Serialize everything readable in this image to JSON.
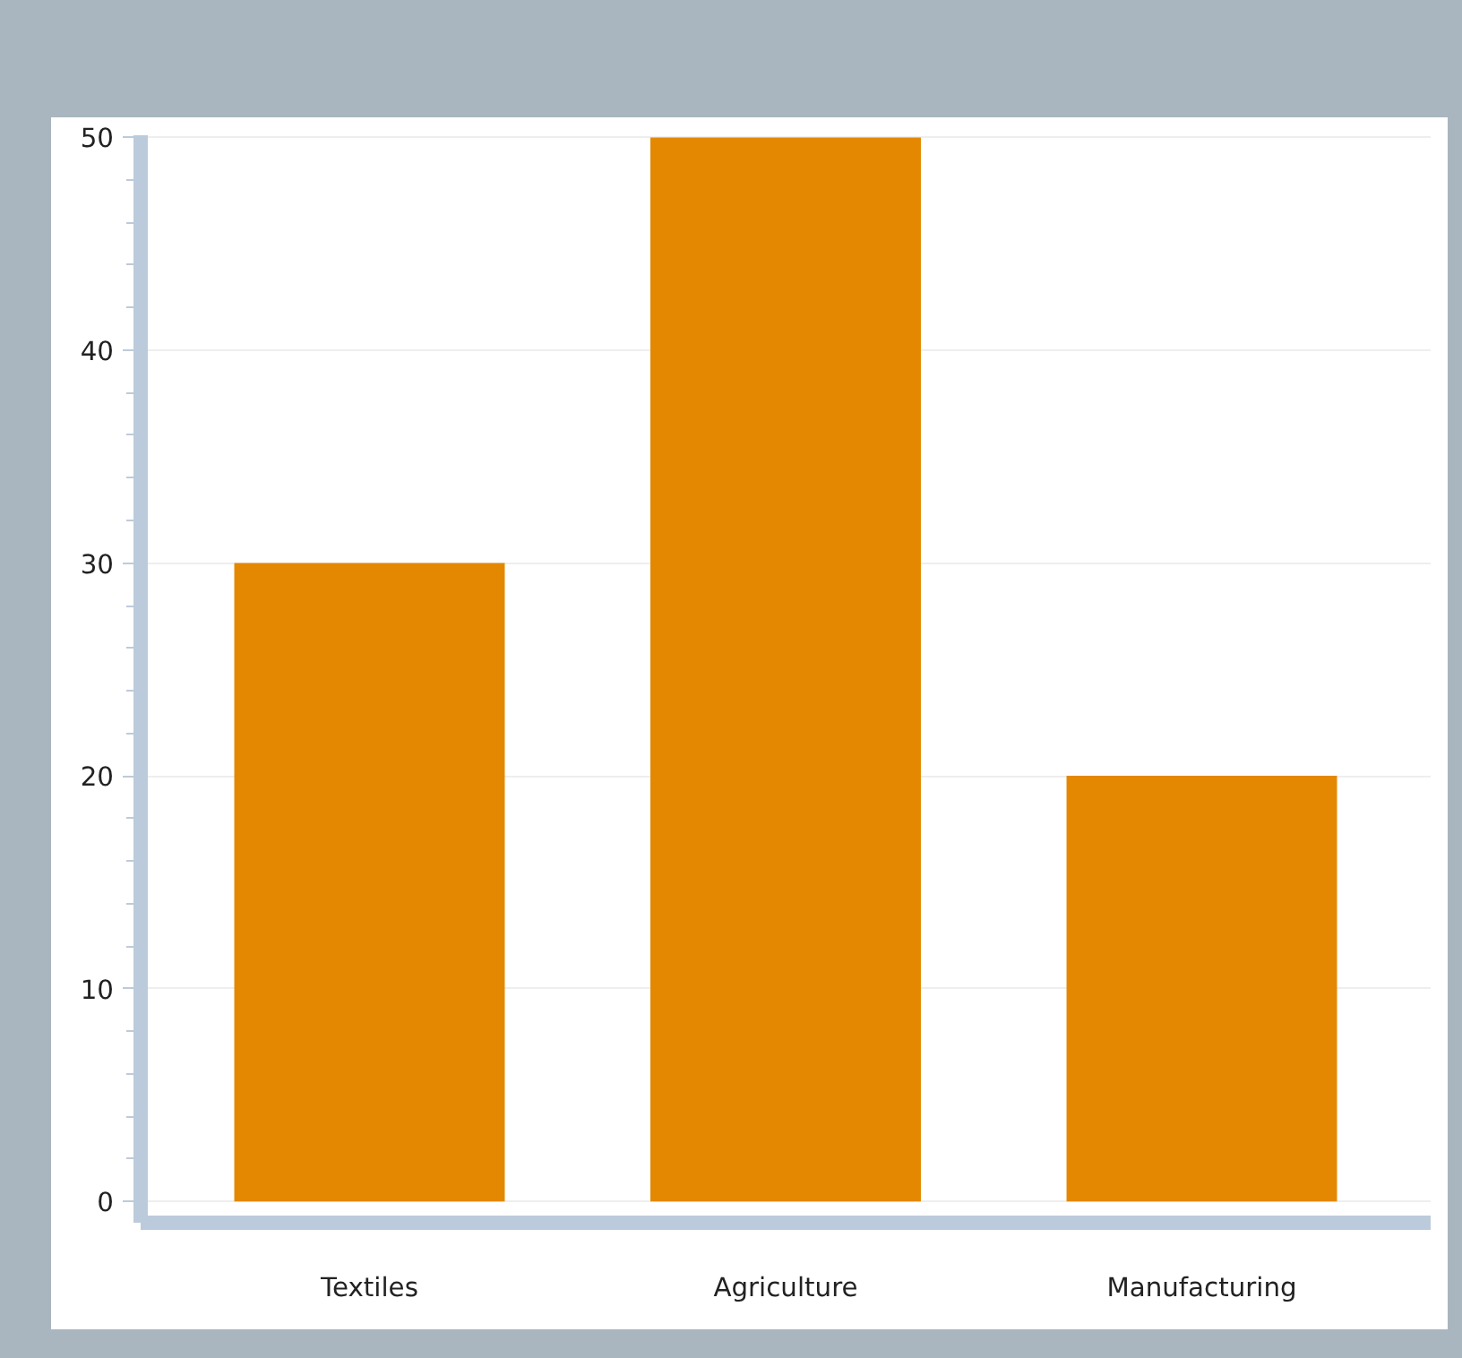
{
  "chart_data": {
    "type": "bar",
    "categories": [
      "Textiles",
      "Agriculture",
      "Manufacturing"
    ],
    "values": [
      30,
      50,
      20
    ],
    "color": "#e38800",
    "ylim": [
      0,
      50
    ],
    "yticks": [
      0,
      10,
      20,
      30,
      40,
      50
    ],
    "grid": "y"
  }
}
